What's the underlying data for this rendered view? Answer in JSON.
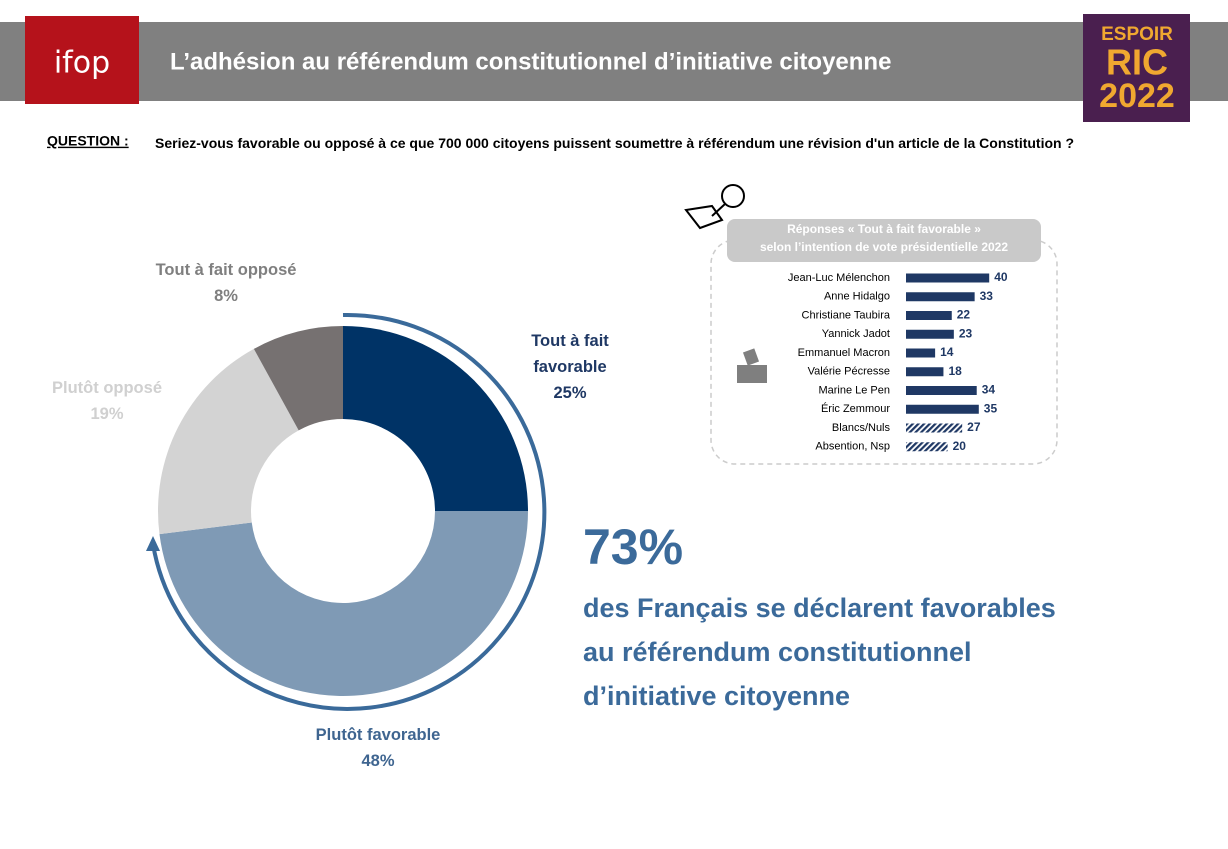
{
  "header": {
    "title": "L’adhésion au référendum constitutionnel d’initiative citoyenne",
    "logo": "ifop",
    "badge": [
      "ESPOIR",
      "RIC",
      "2022"
    ]
  },
  "question": {
    "label": "QUESTION :",
    "text": "Seriez-vous favorable ou opposé à ce que 700 000 citoyens puissent soumettre à référendum une révision d'un article de la Constitution ?"
  },
  "highlight": {
    "figure": "73%",
    "lines": [
      "des Français se déclarent favorables",
      "au référendum constitutionnel",
      "d’initiative citoyenne"
    ]
  },
  "chart_data": [
    {
      "type": "pie",
      "donut": true,
      "categories": [
        "Tout à fait favorable",
        "Plutôt favorable",
        "Plutôt opposé",
        "Tout à fait opposé"
      ],
      "values": [
        25,
        48,
        19,
        8
      ],
      "value_labels": [
        "25%",
        "48%",
        "19%",
        "8%"
      ],
      "colors": [
        "#003366",
        "#7f9ab5",
        "#d3d3d3",
        "#767171"
      ],
      "label_colors": [
        "#1f3864",
        "#3f6590",
        "#d0d0d0",
        "#7f7f7f"
      ]
    },
    {
      "type": "bar",
      "orientation": "horizontal",
      "title": "Réponses « Tout à fait favorable »",
      "subtitle": "selon l’intention de vote présidentielle 2022",
      "categories": [
        "Jean-Luc Mélenchon",
        "Anne Hidalgo",
        "Christiane Taubira",
        "Yannick Jadot",
        "Emmanuel Macron",
        "Valérie Pécresse",
        "Marine Le Pen",
        "Éric Zemmour",
        "Blancs/Nuls",
        "Absention, Nsp"
      ],
      "values": [
        40,
        33,
        22,
        23,
        14,
        18,
        34,
        35,
        27,
        20
      ],
      "color": "#1f3864",
      "styles": [
        "solid",
        "solid",
        "solid",
        "solid",
        "solid",
        "solid",
        "solid",
        "solid",
        "hatched",
        "hatched"
      ]
    }
  ]
}
